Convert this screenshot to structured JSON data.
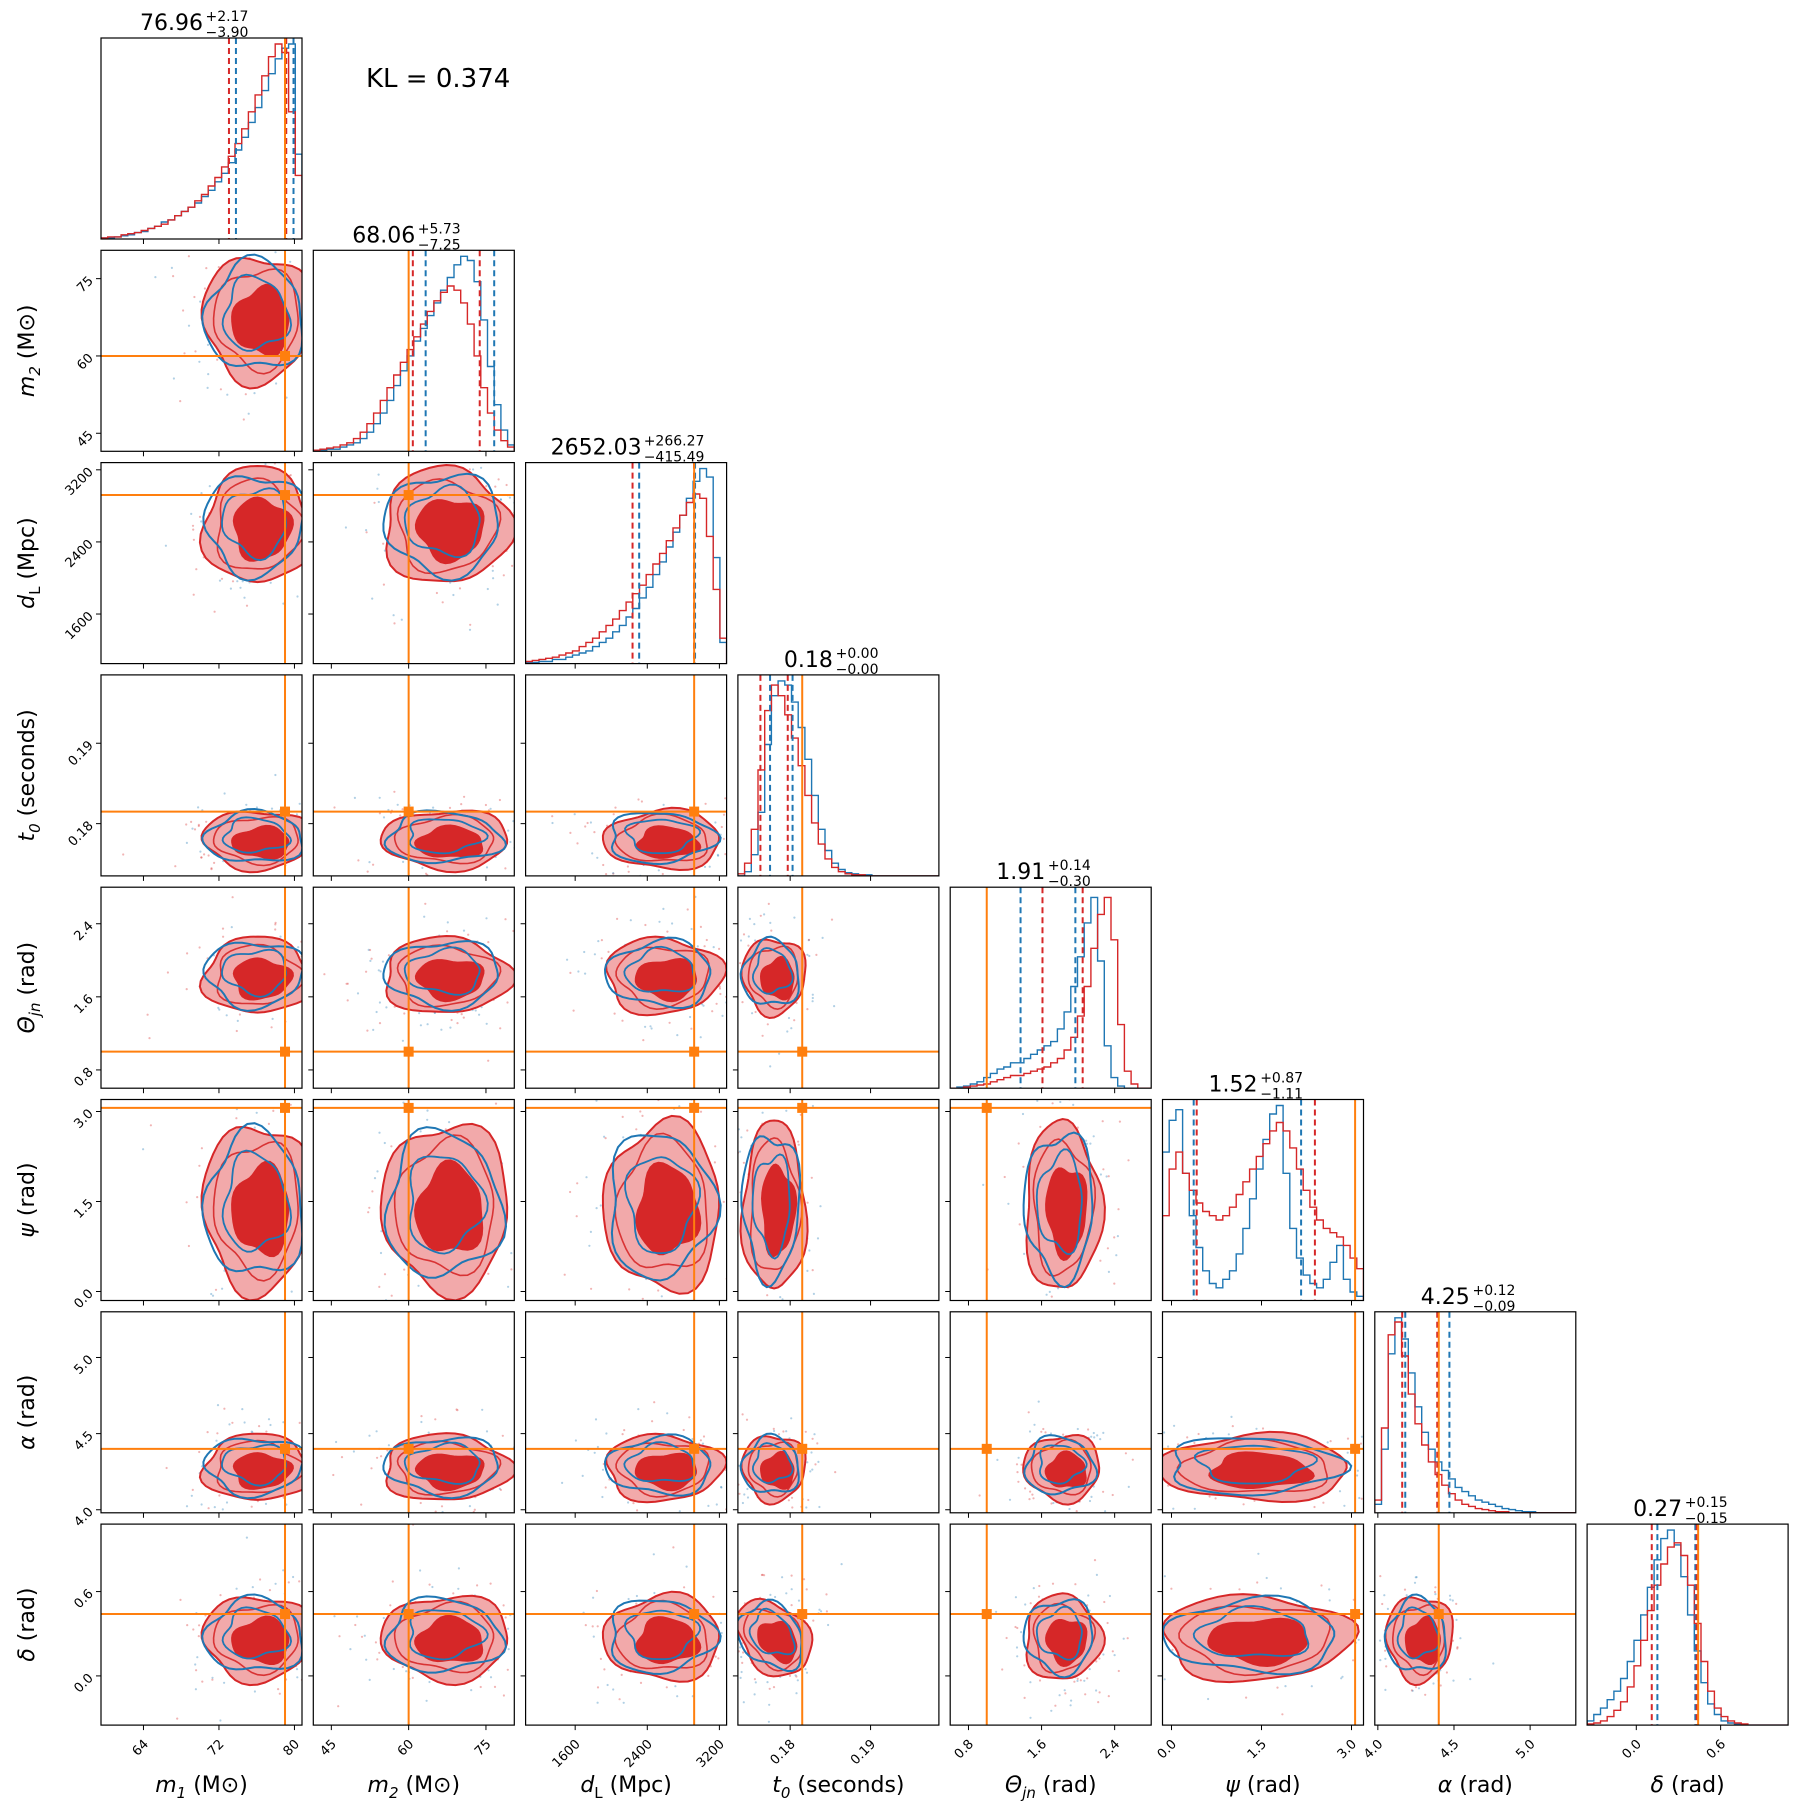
{
  "chart_data": {
    "type": "corner",
    "kl_label": "KL = 0.374",
    "colors": {
      "posterior_a": "#1f77b4",
      "posterior_b": "#d62728",
      "posterior_b_light": "#f2a9aa",
      "injection": "#ff7f0e",
      "frame": "#000000"
    },
    "parameters": [
      {
        "key": "m1",
        "label_sym": "m",
        "label_sub": "1",
        "label_unit": "(M⊙)",
        "range": [
          59.5,
          80.8
        ],
        "ticks": [
          64,
          72,
          80
        ],
        "tick_labels": [
          "64",
          "72",
          "80"
        ],
        "injection": 79.0,
        "median_title": "76.96",
        "err_plus": "+2.17",
        "err_minus": "−3.90",
        "quantiles_a": [
          73.8,
          79.9
        ],
        "quantiles_b": [
          73.06,
          79.13
        ],
        "hist_a": [
          0.5,
          0.5,
          1,
          1.5,
          2,
          3,
          3.5,
          5,
          6,
          8,
          9,
          11,
          13,
          15,
          17,
          20,
          23,
          27,
          31,
          36,
          42,
          48,
          55,
          62,
          70,
          78,
          85,
          90,
          92,
          40
        ],
        "hist_b": [
          0.5,
          1,
          1,
          2,
          2.5,
          3,
          4,
          5,
          6,
          7,
          9,
          11,
          13,
          15,
          18,
          21,
          25,
          29,
          34,
          39,
          45,
          52,
          60,
          68,
          77,
          86,
          92,
          88,
          60,
          30
        ]
      },
      {
        "key": "m2",
        "label_sym": "m",
        "label_sub": "2",
        "label_unit": "(M⊙)",
        "range": [
          41.5,
          80.5
        ],
        "ticks": [
          45,
          60,
          75
        ],
        "tick_labels": [
          "45",
          "60",
          "75"
        ],
        "injection": 60.0,
        "median_title": "68.06",
        "err_plus": "+5.73",
        "err_minus": "−7.25",
        "quantiles_a": [
          63.3,
          76.6
        ],
        "quantiles_b": [
          60.81,
          73.79
        ],
        "hist_a": [
          0.5,
          0.5,
          1,
          1,
          2,
          3,
          4,
          6,
          9,
          13,
          18,
          24,
          31,
          38,
          45,
          52,
          58,
          64,
          70,
          76,
          82,
          88,
          92,
          90,
          80,
          62,
          40,
          22,
          10,
          3
        ],
        "hist_b": [
          0.5,
          1,
          1.5,
          2,
          3,
          4,
          6,
          9,
          13,
          18,
          24,
          30,
          36,
          42,
          48,
          54,
          60,
          66,
          71,
          75,
          78,
          76,
          70,
          60,
          45,
          30,
          18,
          10,
          5,
          2
        ]
      },
      {
        "key": "dL",
        "label_sym": "d",
        "label_sub": "L",
        "label_unit": "(Mpc)",
        "range": [
          1050,
          3280
        ],
        "ticks": [
          1600,
          2400,
          3200
        ],
        "tick_labels": [
          "1600",
          "2400",
          "3200"
        ],
        "injection": 2920,
        "median_title": "2652.03",
        "err_plus": "+266.27",
        "err_minus": "−415.49",
        "quantiles_a": [
          2310,
          2930
        ],
        "quantiles_b": [
          2236.54,
          2918.3
        ],
        "hist_a": [
          0.5,
          0.5,
          1,
          1,
          2,
          2,
          3,
          4,
          5,
          6,
          8,
          10,
          12,
          15,
          18,
          22,
          26,
          31,
          36,
          42,
          48,
          55,
          62,
          70,
          78,
          86,
          92,
          88,
          50,
          10
        ],
        "hist_b": [
          1,
          1.5,
          2,
          2.5,
          3,
          4,
          5,
          6,
          8,
          10,
          12,
          15,
          18,
          21,
          25,
          29,
          33,
          37,
          42,
          47,
          52,
          58,
          64,
          70,
          76,
          80,
          78,
          60,
          35,
          12
        ]
      },
      {
        "key": "t0",
        "label_sym": "t",
        "label_sub": "0",
        "label_unit": "(seconds)",
        "range": [
          0.1735,
          0.1985
        ],
        "ticks": [
          0.18,
          0.19
        ],
        "tick_labels": [
          "0.18",
          "0.19"
        ],
        "injection": 0.1815,
        "median_title": "0.18",
        "err_plus": "+0.00",
        "err_minus": "−0.00",
        "quantiles_a": [
          0.1775,
          0.1803
        ],
        "quantiles_b": [
          0.1763,
          0.1797
        ],
        "hist_a": [
          0,
          2,
          10,
          30,
          62,
          85,
          92,
          90,
          82,
          70,
          55,
          38,
          22,
          12,
          6,
          3,
          1.5,
          1,
          0.5,
          0.5,
          0,
          0,
          0,
          0,
          0,
          0,
          0,
          0,
          0,
          0
        ],
        "hist_b": [
          1,
          6,
          22,
          50,
          78,
          90,
          85,
          76,
          65,
          52,
          38,
          25,
          15,
          8,
          4,
          2,
          1,
          0.5,
          0.5,
          0,
          0,
          0,
          0,
          0,
          0,
          0,
          0,
          0,
          0,
          0
        ]
      },
      {
        "key": "theta",
        "label_sym": "Θ",
        "label_sub": "jn",
        "label_unit": "(rad)",
        "range": [
          0.6,
          2.8
        ],
        "ticks": [
          0.8,
          1.6,
          2.4
        ],
        "tick_labels": [
          "0.8",
          "1.6",
          "2.4"
        ],
        "injection": 1.0,
        "median_title": "1.91",
        "err_plus": "+0.14",
        "err_minus": "−0.30",
        "quantiles_a": [
          1.37,
          1.97
        ],
        "quantiles_b": [
          1.61,
          2.05
        ],
        "hist_a": [
          0,
          0.5,
          1,
          2,
          3,
          5,
          7,
          9,
          10,
          12,
          12,
          14,
          16,
          18,
          20,
          22,
          28,
          36,
          48,
          62,
          78,
          90,
          60,
          20,
          5,
          1,
          0,
          0,
          0,
          0
        ],
        "hist_b": [
          0,
          0,
          0.5,
          1,
          1.5,
          2,
          3,
          4,
          5,
          6,
          6,
          7,
          8,
          9,
          10,
          12,
          14,
          18,
          24,
          34,
          48,
          66,
          82,
          90,
          70,
          30,
          8,
          2,
          0,
          0
        ]
      },
      {
        "key": "psi",
        "label_sym": "ψ",
        "label_sub": "",
        "label_unit": "(rad)",
        "range": [
          -0.15,
          3.2
        ],
        "ticks": [
          0.0,
          1.5,
          3.0
        ],
        "tick_labels": [
          "0.0",
          "1.5",
          "3.0"
        ],
        "injection": 3.06,
        "median_title": "1.52",
        "err_plus": "+0.87",
        "err_minus": "−1.11",
        "quantiles_a": [
          0.37,
          2.16
        ],
        "quantiles_b": [
          0.42,
          2.39
        ],
        "hist_a": [
          70,
          85,
          90,
          60,
          40,
          25,
          14,
          8,
          6,
          10,
          14,
          22,
          34,
          48,
          62,
          76,
          88,
          92,
          60,
          34,
          20,
          12,
          8,
          6,
          10,
          18,
          26,
          10,
          4,
          2
        ],
        "hist_b": [
          40,
          62,
          70,
          60,
          52,
          46,
          42,
          40,
          38,
          40,
          44,
          50,
          56,
          62,
          68,
          74,
          80,
          84,
          80,
          72,
          62,
          52,
          44,
          38,
          34,
          32,
          30,
          26,
          20,
          15
        ]
      },
      {
        "key": "alpha",
        "label_sym": "α",
        "label_sub": "",
        "label_unit": "(rad)",
        "range": [
          3.98,
          5.3
        ],
        "ticks": [
          4.0,
          4.5,
          5.0
        ],
        "tick_labels": [
          "4.0",
          "4.5",
          "5.0"
        ],
        "injection": 4.4,
        "median_title": "4.25",
        "err_plus": "+0.12",
        "err_minus": "−0.09",
        "quantiles_a": [
          4.18,
          4.47
        ],
        "quantiles_b": [
          4.16,
          4.39
        ],
        "hist_a": [
          4,
          30,
          75,
          92,
          82,
          66,
          50,
          38,
          30,
          24,
          20,
          16,
          12,
          10,
          8,
          6,
          5,
          4,
          3,
          2,
          1.5,
          1,
          0.5,
          0.5,
          0,
          0,
          0,
          0,
          0,
          0
        ],
        "hist_b": [
          6,
          40,
          84,
          90,
          74,
          56,
          42,
          32,
          24,
          18,
          13,
          9,
          6,
          4,
          3,
          2,
          1.5,
          1,
          0.5,
          0.5,
          0,
          0,
          0,
          0,
          0,
          0,
          0,
          0,
          0,
          0
        ]
      },
      {
        "key": "delta",
        "label_sym": "δ",
        "label_sub": "",
        "label_unit": "(rad)",
        "range": [
          -0.35,
          1.08
        ],
        "ticks": [
          0.0,
          0.6
        ],
        "tick_labels": [
          "0.0",
          "0.6"
        ],
        "injection": 0.44,
        "median_title": "0.27",
        "err_plus": "+0.15",
        "err_minus": "−0.15",
        "quantiles_a": [
          0.15,
          0.42
        ],
        "quantiles_b": [
          0.11,
          0.43
        ],
        "hist_a": [
          2,
          5,
          8,
          12,
          16,
          22,
          30,
          40,
          52,
          65,
          78,
          88,
          92,
          85,
          70,
          52,
          35,
          20,
          10,
          5,
          2,
          1,
          0.5,
          0,
          0,
          0,
          0,
          0,
          0,
          0
        ],
        "hist_b": [
          0.5,
          1,
          2,
          4,
          7,
          11,
          18,
          28,
          40,
          54,
          66,
          76,
          84,
          86,
          80,
          66,
          48,
          30,
          16,
          8,
          4,
          2,
          1,
          0.5,
          0,
          0,
          0,
          0,
          0,
          0
        ]
      }
    ]
  }
}
